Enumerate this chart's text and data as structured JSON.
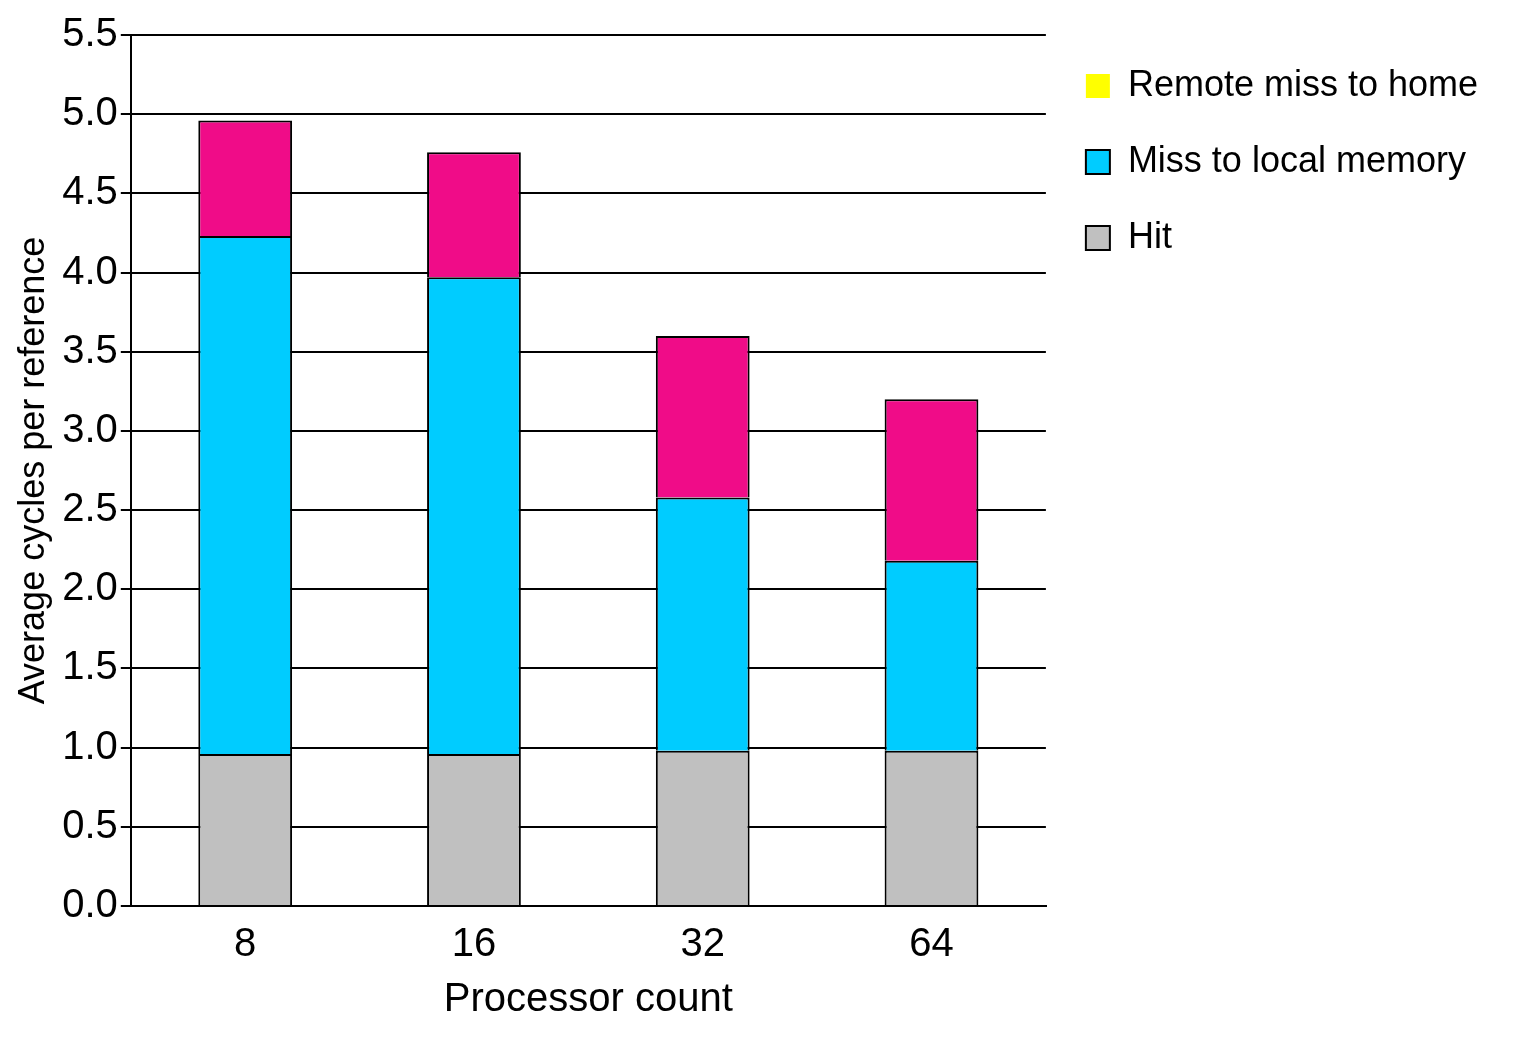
{
  "chart_data": {
    "type": "bar",
    "stacked": true,
    "xlabel": "Processor count",
    "ylabel": "Average cycles per reference",
    "categories": [
      "8",
      "16",
      "32",
      "64"
    ],
    "series": [
      {
        "name": "Hit",
        "color": "#c0c0c0",
        "values": [
          0.96,
          0.96,
          0.98,
          0.98
        ]
      },
      {
        "name": "Miss to local memory",
        "color": "#00ccff",
        "values": [
          3.27,
          3.01,
          1.6,
          1.2
        ]
      },
      {
        "name": "Remote miss to home",
        "color": "#ffff00",
        "values": [
          0,
          0,
          0,
          0
        ]
      },
      {
        "color": "#f00c88",
        "values": [
          0.73,
          0.79,
          1.02,
          1.02
        ]
      }
    ],
    "ylim": [
      0,
      5.5
    ],
    "yticks": [
      {
        "value": 0,
        "label": "0.0"
      },
      {
        "value": 0.5,
        "label": "0.5"
      },
      {
        "value": 1,
        "label": "1.0"
      },
      {
        "value": 1.5,
        "label": "1.5"
      },
      {
        "value": 2,
        "label": "2.0"
      },
      {
        "value": 2.5,
        "label": "2.5"
      },
      {
        "value": 3,
        "label": "3.0"
      },
      {
        "value": 3.5,
        "label": "3.5"
      },
      {
        "value": 4,
        "label": "4.0"
      },
      {
        "value": 4.5,
        "label": "4.5"
      },
      {
        "value": 5,
        "label": "5.0"
      },
      {
        "value": 5.5,
        "label": "5.5"
      }
    ],
    "grid": "y",
    "legend": "top right"
  }
}
